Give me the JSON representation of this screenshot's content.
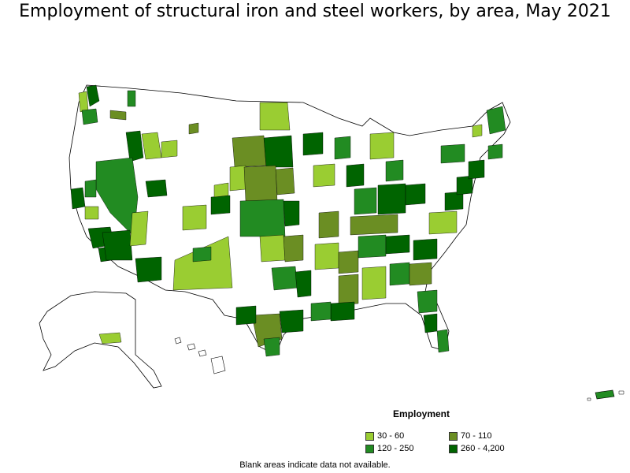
{
  "title": "Employment of structural iron and steel workers, by area, May 2021",
  "legend": {
    "title": "Employment",
    "items": [
      {
        "label": "30 - 60",
        "color": "#9acd32"
      },
      {
        "label": "70 - 110",
        "color": "#6b8e23"
      },
      {
        "label": "120 - 250",
        "color": "#228b22"
      },
      {
        "label": "260 - 4,200",
        "color": "#006400"
      }
    ]
  },
  "note": "Blank areas indicate data not available.",
  "colors": {
    "border": "#000000",
    "blank": "#ffffff"
  }
}
